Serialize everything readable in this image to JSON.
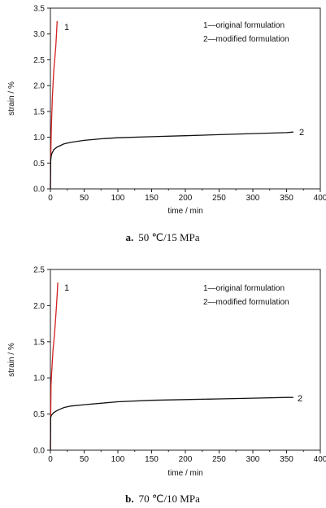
{
  "chart_data": [
    {
      "type": "line",
      "xlabel": "time / min",
      "ylabel": "strain / %",
      "xlim": [
        0,
        400
      ],
      "ylim": [
        0,
        3.5
      ],
      "xticks": [
        "0",
        "50",
        "100",
        "150",
        "200",
        "250",
        "300",
        "350",
        "400"
      ],
      "yticks": [
        "0.0",
        "0.5",
        "1.0",
        "1.5",
        "2.0",
        "2.5",
        "3.0",
        "3.5"
      ],
      "grid": false,
      "legend": [
        "1—original formulation",
        "2—modified formulation"
      ],
      "caption_letter": "a.",
      "caption_text": "50 ℃/15 MPa",
      "series": [
        {
          "name": "1",
          "color": "#d42020",
          "x": [
            0,
            0.5,
            1,
            1.5,
            2,
            3,
            4,
            5,
            6,
            7,
            8,
            9,
            10
          ],
          "y": [
            0.0,
            0.55,
            0.9,
            1.2,
            1.45,
            1.8,
            2.05,
            2.3,
            2.45,
            2.6,
            2.75,
            3.0,
            3.25
          ]
        },
        {
          "name": "2",
          "color": "#111111",
          "x": [
            0,
            0.5,
            1,
            2,
            5,
            10,
            20,
            30,
            50,
            75,
            100,
            150,
            200,
            250,
            300,
            350,
            360
          ],
          "y": [
            0.0,
            0.55,
            0.62,
            0.68,
            0.76,
            0.81,
            0.87,
            0.9,
            0.94,
            0.97,
            0.99,
            1.01,
            1.03,
            1.05,
            1.07,
            1.09,
            1.1
          ]
        }
      ]
    },
    {
      "type": "line",
      "xlabel": "time / min",
      "ylabel": "strain / %",
      "xlim": [
        0,
        400
      ],
      "ylim": [
        0,
        2.5
      ],
      "xticks": [
        "0",
        "50",
        "100",
        "150",
        "200",
        "250",
        "300",
        "350",
        "400"
      ],
      "yticks": [
        "0.0",
        "0.5",
        "1.0",
        "1.5",
        "2.0",
        "2.5"
      ],
      "grid": false,
      "legend": [
        "1—original formulation",
        "2—modified formulation"
      ],
      "caption_letter": "b.",
      "caption_text": "70 ℃/10 MPa",
      "series": [
        {
          "name": "1",
          "color": "#d42020",
          "x": [
            0,
            0.5,
            1,
            2,
            3,
            4,
            5,
            6,
            7,
            8,
            9,
            10,
            11
          ],
          "y": [
            0.0,
            0.5,
            0.9,
            1.1,
            1.25,
            1.4,
            1.5,
            1.6,
            1.72,
            1.85,
            2.0,
            2.15,
            2.32
          ]
        },
        {
          "name": "2",
          "color": "#111111",
          "x": [
            0,
            0.5,
            1,
            2,
            5,
            10,
            20,
            30,
            50,
            75,
            100,
            150,
            200,
            250,
            300,
            350,
            360
          ],
          "y": [
            0.0,
            0.45,
            0.47,
            0.49,
            0.52,
            0.55,
            0.59,
            0.61,
            0.63,
            0.65,
            0.67,
            0.69,
            0.7,
            0.71,
            0.72,
            0.73,
            0.73
          ]
        }
      ]
    }
  ]
}
